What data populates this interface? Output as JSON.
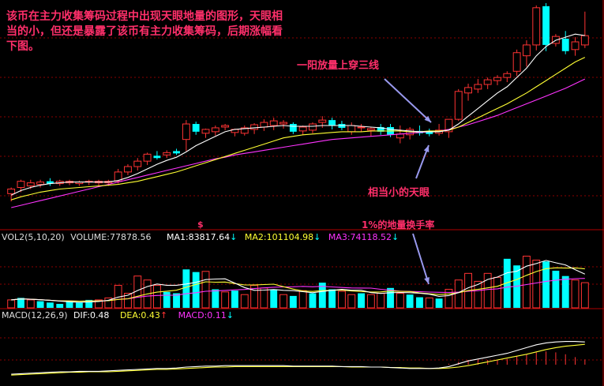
{
  "colors": {
    "up": "#ff3333",
    "down": "#00ffff",
    "ma1": "#ffffff",
    "ma2": "#ffff33",
    "ma3": "#ff33ff",
    "grid": "#8a0000",
    "annotation_text": "#ff2f6a",
    "arrow": "#9999ee",
    "macd_dif": "#ffffff",
    "macd_dea": "#ffff33",
    "macd_bar": "#ff3333"
  },
  "annotations": {
    "main_note": "该币在主力收集筹码过程中出现天眼地量的图形，天眼相当的小，但还是暴露了该币有主力收集筹码，后期涨幅看下图。",
    "yang_line": "一阳放量上穿三线",
    "small_eye": "相当小的天眼",
    "low_volume": "1%的地量换手率",
    "marker": "$"
  },
  "volume_header": {
    "name": "VOL2(5,10,20)",
    "volume": "VOLUME:77878.56",
    "ma1": "MA1:83817.64",
    "ma2": "MA2:101104.98",
    "ma3": "MA3:74118.52"
  },
  "macd_header": {
    "name": "MACD(12,26,9)",
    "dif": "DIF:0.48",
    "dea": "DEA:0.43",
    "macd": "MACD:0.11"
  },
  "chart_data": [
    {
      "type": "candlestick",
      "ylim": [
        0,
        270
      ],
      "candles": [
        {
          "o": 20,
          "h": 28,
          "l": 10,
          "c": 26
        },
        {
          "o": 28,
          "h": 38,
          "l": 22,
          "c": 36
        },
        {
          "o": 30,
          "h": 38,
          "l": 26,
          "c": 34
        },
        {
          "o": 32,
          "h": 38,
          "l": 28,
          "c": 35
        },
        {
          "o": 36,
          "h": 40,
          "l": 30,
          "c": 33
        },
        {
          "o": 33,
          "h": 38,
          "l": 30,
          "c": 36
        },
        {
          "o": 34,
          "h": 38,
          "l": 31,
          "c": 36
        },
        {
          "o": 33,
          "h": 37,
          "l": 30,
          "c": 35
        },
        {
          "o": 35,
          "h": 38,
          "l": 31,
          "c": 36
        },
        {
          "o": 34,
          "h": 38,
          "l": 30,
          "c": 36
        },
        {
          "o": 34,
          "h": 38,
          "l": 30,
          "c": 36
        },
        {
          "o": 36,
          "h": 52,
          "l": 33,
          "c": 48
        },
        {
          "o": 48,
          "h": 58,
          "l": 44,
          "c": 55
        },
        {
          "o": 55,
          "h": 66,
          "l": 50,
          "c": 62
        },
        {
          "o": 62,
          "h": 73,
          "l": 57,
          "c": 71
        },
        {
          "o": 69,
          "h": 75,
          "l": 64,
          "c": 66
        },
        {
          "o": 70,
          "h": 76,
          "l": 66,
          "c": 73
        },
        {
          "o": 75,
          "h": 78,
          "l": 70,
          "c": 72
        },
        {
          "o": 90,
          "h": 115,
          "l": 75,
          "c": 110
        },
        {
          "o": 110,
          "h": 113,
          "l": 96,
          "c": 100
        },
        {
          "o": 98,
          "h": 104,
          "l": 92,
          "c": 103
        },
        {
          "o": 100,
          "h": 108,
          "l": 95,
          "c": 105
        },
        {
          "o": 106,
          "h": 110,
          "l": 102,
          "c": 108
        },
        {
          "o": 99,
          "h": 104,
          "l": 94,
          "c": 103
        },
        {
          "o": 98,
          "h": 108,
          "l": 95,
          "c": 105
        },
        {
          "o": 103,
          "h": 111,
          "l": 97,
          "c": 109
        },
        {
          "o": 106,
          "h": 116,
          "l": 101,
          "c": 112
        },
        {
          "o": 108,
          "h": 118,
          "l": 102,
          "c": 114
        },
        {
          "o": 110,
          "h": 115,
          "l": 104,
          "c": 112
        },
        {
          "o": 110,
          "h": 112,
          "l": 97,
          "c": 100
        },
        {
          "o": 101,
          "h": 108,
          "l": 96,
          "c": 106
        },
        {
          "o": 102,
          "h": 112,
          "l": 98,
          "c": 110
        },
        {
          "o": 112,
          "h": 120,
          "l": 105,
          "c": 115
        },
        {
          "o": 115,
          "h": 118,
          "l": 103,
          "c": 108
        },
        {
          "o": 110,
          "h": 114,
          "l": 102,
          "c": 105
        },
        {
          "o": 100,
          "h": 112,
          "l": 96,
          "c": 108
        },
        {
          "o": 105,
          "h": 110,
          "l": 100,
          "c": 106
        },
        {
          "o": 102,
          "h": 106,
          "l": 94,
          "c": 104
        },
        {
          "o": 106,
          "h": 110,
          "l": 96,
          "c": 100
        },
        {
          "o": 106,
          "h": 110,
          "l": 93,
          "c": 96
        },
        {
          "o": 92,
          "h": 108,
          "l": 85,
          "c": 97
        },
        {
          "o": 96,
          "h": 106,
          "l": 90,
          "c": 103
        },
        {
          "o": 101,
          "h": 108,
          "l": 95,
          "c": 98
        },
        {
          "o": 100,
          "h": 104,
          "l": 94,
          "c": 97
        },
        {
          "o": 98,
          "h": 110,
          "l": 95,
          "c": 102
        },
        {
          "o": 100,
          "h": 114,
          "l": 92,
          "c": 116
        },
        {
          "o": 116,
          "h": 155,
          "l": 114,
          "c": 152
        },
        {
          "o": 150,
          "h": 162,
          "l": 140,
          "c": 157
        },
        {
          "o": 155,
          "h": 168,
          "l": 150,
          "c": 161
        },
        {
          "o": 161,
          "h": 170,
          "l": 155,
          "c": 167
        },
        {
          "o": 166,
          "h": 173,
          "l": 160,
          "c": 170
        },
        {
          "o": 170,
          "h": 178,
          "l": 164,
          "c": 175
        },
        {
          "o": 178,
          "h": 206,
          "l": 172,
          "c": 202
        },
        {
          "o": 198,
          "h": 218,
          "l": 184,
          "c": 212
        },
        {
          "o": 212,
          "h": 263,
          "l": 205,
          "c": 260
        },
        {
          "o": 262,
          "h": 266,
          "l": 204,
          "c": 212
        },
        {
          "o": 214,
          "h": 226,
          "l": 210,
          "c": 223
        },
        {
          "o": 220,
          "h": 230,
          "l": 200,
          "c": 204
        },
        {
          "o": 206,
          "h": 222,
          "l": 198,
          "c": 216
        },
        {
          "o": 212,
          "h": 255,
          "l": 208,
          "c": 224
        }
      ],
      "ma1": [
        18,
        24,
        28,
        31,
        33,
        34,
        35,
        35,
        35,
        35,
        35,
        37,
        41,
        46,
        52,
        58,
        63,
        67,
        74,
        82,
        88,
        94,
        100,
        103,
        104,
        105,
        106,
        107,
        108,
        107,
        107,
        107,
        108,
        108,
        108,
        108,
        107,
        106,
        105,
        103,
        102,
        101,
        100,
        100,
        100,
        102,
        110,
        120,
        130,
        140,
        150,
        158,
        170,
        182,
        198,
        210,
        218,
        222,
        226,
        224
      ],
      "ma2": [
        12,
        16,
        19,
        22,
        24,
        26,
        27,
        28,
        29,
        30,
        31,
        32,
        34,
        36,
        39,
        42,
        45,
        48,
        52,
        56,
        60,
        64,
        68,
        72,
        76,
        80,
        84,
        88,
        92,
        94,
        96,
        97,
        98,
        99,
        100,
        100,
        100,
        101,
        101,
        101,
        101,
        100,
        100,
        101,
        101,
        102,
        106,
        112,
        118,
        124,
        130,
        136,
        143,
        150,
        158,
        166,
        174,
        182,
        190,
        196
      ],
      "ma3": [
        2,
        5,
        8,
        11,
        14,
        17,
        20,
        23,
        26,
        29,
        32,
        35,
        38,
        41,
        44,
        47,
        50,
        53,
        56,
        59,
        62,
        65,
        67,
        70,
        72,
        74,
        76,
        78,
        80,
        82,
        84,
        86,
        88,
        90,
        91,
        92,
        93,
        94,
        95,
        96,
        97,
        98,
        99,
        100,
        101,
        103,
        106,
        109,
        113,
        117,
        121,
        126,
        131,
        136,
        141,
        146,
        151,
        156,
        162,
        168
      ]
    },
    {
      "type": "bar",
      "title": "VOL2(5,10,20)",
      "ylim": [
        0,
        100
      ],
      "volumes": [
        {
          "v": 12,
          "d": "up"
        },
        {
          "v": 15,
          "d": "down"
        },
        {
          "v": 12,
          "d": "up"
        },
        {
          "v": 10,
          "d": "down"
        },
        {
          "v": 8,
          "d": "down"
        },
        {
          "v": 6,
          "d": "down"
        },
        {
          "v": 10,
          "d": "down"
        },
        {
          "v": 8,
          "d": "down"
        },
        {
          "v": 12,
          "d": "down"
        },
        {
          "v": 12,
          "d": "up"
        },
        {
          "v": 15,
          "d": "up"
        },
        {
          "v": 34,
          "d": "up"
        },
        {
          "v": 22,
          "d": "up"
        },
        {
          "v": 48,
          "d": "up"
        },
        {
          "v": 42,
          "d": "up"
        },
        {
          "v": 34,
          "d": "up"
        },
        {
          "v": 24,
          "d": "down"
        },
        {
          "v": 22,
          "d": "down"
        },
        {
          "v": 58,
          "d": "down"
        },
        {
          "v": 54,
          "d": "down"
        },
        {
          "v": 55,
          "d": "up"
        },
        {
          "v": 28,
          "d": "down"
        },
        {
          "v": 24,
          "d": "up"
        },
        {
          "v": 26,
          "d": "down"
        },
        {
          "v": 20,
          "d": "up"
        },
        {
          "v": 34,
          "d": "up"
        },
        {
          "v": 30,
          "d": "up"
        },
        {
          "v": 28,
          "d": "down"
        },
        {
          "v": 20,
          "d": "up"
        },
        {
          "v": 18,
          "d": "down"
        },
        {
          "v": 26,
          "d": "up"
        },
        {
          "v": 22,
          "d": "down"
        },
        {
          "v": 38,
          "d": "down"
        },
        {
          "v": 28,
          "d": "down"
        },
        {
          "v": 25,
          "d": "up"
        },
        {
          "v": 20,
          "d": "up"
        },
        {
          "v": 22,
          "d": "down"
        },
        {
          "v": 20,
          "d": "up"
        },
        {
          "v": 22,
          "d": "up"
        },
        {
          "v": 30,
          "d": "down"
        },
        {
          "v": 22,
          "d": "up"
        },
        {
          "v": 20,
          "d": "down"
        },
        {
          "v": 16,
          "d": "down"
        },
        {
          "v": 15,
          "d": "up"
        },
        {
          "v": 14,
          "d": "down"
        },
        {
          "v": 28,
          "d": "up"
        },
        {
          "v": 42,
          "d": "up"
        },
        {
          "v": 52,
          "d": "up"
        },
        {
          "v": 40,
          "d": "up"
        },
        {
          "v": 52,
          "d": "up"
        },
        {
          "v": 46,
          "d": "up"
        },
        {
          "v": 74,
          "d": "down"
        },
        {
          "v": 64,
          "d": "down"
        },
        {
          "v": 78,
          "d": "up"
        },
        {
          "v": 72,
          "d": "up"
        },
        {
          "v": 70,
          "d": "down"
        },
        {
          "v": 56,
          "d": "down"
        },
        {
          "v": 48,
          "d": "down"
        },
        {
          "v": 42,
          "d": "up"
        },
        {
          "v": 38,
          "d": "up"
        }
      ]
    },
    {
      "type": "line",
      "title": "MACD(12,26,9)",
      "ylim": [
        -1,
        1
      ],
      "dif": [
        -0.2,
        -0.19,
        -0.18,
        -0.17,
        -0.16,
        -0.15,
        -0.15,
        -0.14,
        -0.14,
        -0.14,
        -0.13,
        -0.12,
        -0.11,
        -0.1,
        -0.09,
        -0.08,
        -0.08,
        -0.07,
        -0.05,
        -0.04,
        -0.03,
        -0.03,
        -0.02,
        -0.02,
        -0.02,
        -0.02,
        -0.02,
        -0.02,
        -0.02,
        -0.03,
        -0.03,
        -0.03,
        -0.03,
        -0.03,
        -0.04,
        -0.04,
        -0.04,
        -0.05,
        -0.05,
        -0.06,
        -0.07,
        -0.08,
        -0.08,
        -0.08,
        -0.07,
        -0.04,
        0.02,
        0.08,
        0.12,
        0.16,
        0.2,
        0.24,
        0.3,
        0.36,
        0.42,
        0.46,
        0.48,
        0.49,
        0.49,
        0.48
      ],
      "dea": [
        -0.22,
        -0.21,
        -0.2,
        -0.19,
        -0.18,
        -0.17,
        -0.16,
        -0.16,
        -0.15,
        -0.15,
        -0.15,
        -0.14,
        -0.13,
        -0.12,
        -0.11,
        -0.1,
        -0.1,
        -0.09,
        -0.08,
        -0.07,
        -0.06,
        -0.05,
        -0.05,
        -0.04,
        -0.04,
        -0.04,
        -0.04,
        -0.04,
        -0.04,
        -0.04,
        -0.04,
        -0.04,
        -0.04,
        -0.04,
        -0.04,
        -0.05,
        -0.05,
        -0.05,
        -0.05,
        -0.06,
        -0.06,
        -0.07,
        -0.07,
        -0.08,
        -0.08,
        -0.07,
        -0.05,
        -0.02,
        0.02,
        0.06,
        0.1,
        0.14,
        0.18,
        0.22,
        0.27,
        0.32,
        0.36,
        0.39,
        0.41,
        0.43
      ],
      "macd": [
        0,
        0,
        0,
        0,
        0,
        0,
        0,
        0,
        0,
        0,
        0,
        0,
        0,
        0,
        0,
        0,
        0,
        0,
        0,
        0,
        0,
        0,
        0,
        0,
        0,
        0,
        0,
        0,
        0,
        0,
        0,
        0,
        0,
        0,
        0,
        0,
        0,
        0,
        0,
        0,
        0,
        0,
        0,
        0,
        0,
        0.02,
        0.06,
        0.1,
        0.1,
        0.1,
        0.1,
        0.12,
        0.18,
        0.22,
        0.26,
        0.28,
        0.26,
        0.22,
        0.16,
        0.11
      ]
    }
  ]
}
